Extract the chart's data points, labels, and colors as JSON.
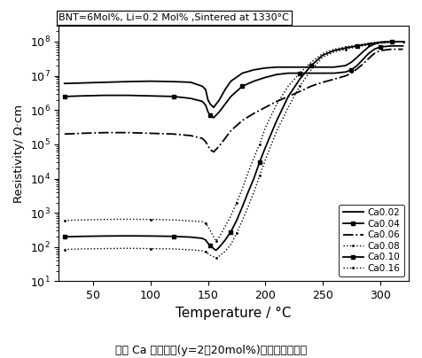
{
  "title": "BNT=6Mol%, Li=0.2 Mol% ,Sintered at 1330°C",
  "xlabel": "Temperature / °C",
  "ylabel": "Resistivity/ Ω·cm",
  "subtitle": "不同 Ca 含量材料(y=2～20mol%)的阻温特性图谱",
  "xlim": [
    20,
    325
  ],
  "ylim": [
    10,
    300000000.0
  ],
  "xticks": [
    50,
    100,
    150,
    200,
    250,
    300
  ],
  "series": [
    {
      "label": "Ca0.02",
      "linestyle": "-",
      "marker": "None",
      "markersize": 0,
      "color": "#000000",
      "lw": 1.3,
      "data_x": [
        25,
        40,
        60,
        80,
        100,
        120,
        135,
        145,
        148,
        150,
        152,
        155,
        160,
        165,
        170,
        180,
        190,
        200,
        210,
        220,
        230,
        240,
        250,
        260,
        270,
        275,
        280,
        285,
        290,
        295,
        300,
        310,
        320
      ],
      "data_y": [
        6000000.0,
        6200000.0,
        6500000.0,
        6800000.0,
        7000000.0,
        6800000.0,
        6500000.0,
        5000000.0,
        4000000.0,
        2000000.0,
        1500000.0,
        1200000.0,
        2000000.0,
        4000000.0,
        7000000.0,
        12000000.0,
        15000000.0,
        17000000.0,
        18000000.0,
        18000000.0,
        18000000.0,
        18000000.0,
        18000000.0,
        18000000.0,
        20000000.0,
        25000000.0,
        35000000.0,
        50000000.0,
        70000000.0,
        85000000.0,
        95000000.0,
        100000000.0,
        100000000.0
      ]
    },
    {
      "label": "Ca0.04",
      "linestyle": "-",
      "marker": "s",
      "markersize": 2.5,
      "color": "#000000",
      "lw": 1.3,
      "markevery": 5,
      "data_x": [
        25,
        40,
        60,
        80,
        100,
        120,
        135,
        145,
        148,
        150,
        152,
        155,
        160,
        165,
        170,
        180,
        190,
        200,
        210,
        220,
        230,
        240,
        250,
        260,
        270,
        275,
        280,
        285,
        290,
        295,
        300,
        310,
        320
      ],
      "data_y": [
        2500000.0,
        2600000.0,
        2700000.0,
        2700000.0,
        2600000.0,
        2500000.0,
        2200000.0,
        1800000.0,
        1400000.0,
        900000.0,
        700000.0,
        600000.0,
        900000.0,
        1500000.0,
        2500000.0,
        5000000.0,
        7000000.0,
        9000000.0,
        11000000.0,
        12000000.0,
        12000000.0,
        12000000.0,
        12000000.0,
        12000000.0,
        13000000.0,
        15000000.0,
        20000000.0,
        30000000.0,
        45000000.0,
        60000000.0,
        70000000.0,
        75000000.0,
        75000000.0
      ]
    },
    {
      "label": "Ca0.06",
      "linestyle": "-.",
      "marker": "None",
      "markersize": 0,
      "color": "#000000",
      "lw": 1.3,
      "markevery": 5,
      "data_x": [
        25,
        40,
        60,
        80,
        100,
        120,
        135,
        145,
        148,
        150,
        152,
        155,
        160,
        165,
        170,
        180,
        190,
        200,
        210,
        220,
        230,
        240,
        250,
        260,
        270,
        275,
        280,
        285,
        290,
        295,
        300,
        310,
        320
      ],
      "data_y": [
        200000.0,
        210000.0,
        220000.0,
        220000.0,
        210000.0,
        200000.0,
        180000.0,
        150000.0,
        120000.0,
        90000.0,
        70000.0,
        60000.0,
        90000.0,
        150000.0,
        250000.0,
        500000.0,
        800000.0,
        1200000.0,
        1800000.0,
        2500000.0,
        3500000.0,
        5000000.0,
        6500000.0,
        8000000.0,
        10000000.0,
        12000000.0,
        16000000.0,
        22000000.0,
        32000000.0,
        45000000.0,
        55000000.0,
        60000000.0,
        60000000.0
      ]
    },
    {
      "label": "Ca0.08",
      "linestyle": ":",
      "marker": ".",
      "markersize": 2,
      "color": "#000000",
      "lw": 1.0,
      "markevery": 4,
      "data_x": [
        25,
        40,
        60,
        80,
        100,
        120,
        135,
        145,
        148,
        150,
        152,
        155,
        157,
        160,
        165,
        170,
        175,
        180,
        185,
        190,
        195,
        200,
        210,
        220,
        230,
        240,
        250,
        260,
        270,
        275,
        280,
        285,
        290,
        295,
        300,
        310,
        320
      ],
      "data_y": [
        600,
        620,
        640,
        650,
        640,
        620,
        580,
        550,
        500,
        400,
        300,
        200,
        150,
        200,
        400,
        800,
        2000,
        5000,
        15000.0,
        40000.0,
        100000.0,
        300000.0,
        1500000.0,
        5000000.0,
        12000000.0,
        25000000.0,
        45000000.0,
        60000000.0,
        70000000.0,
        75000000.0,
        80000000.0,
        85000000.0,
        90000000.0,
        95000000.0,
        100000000.0,
        100000000.0,
        100000000.0
      ]
    },
    {
      "label": "Ca0.10",
      "linestyle": "-",
      "marker": "s",
      "markersize": 2.5,
      "color": "#000000",
      "lw": 1.3,
      "markevery": 5,
      "data_x": [
        25,
        40,
        60,
        80,
        100,
        120,
        135,
        145,
        148,
        150,
        152,
        155,
        157,
        160,
        165,
        170,
        175,
        180,
        185,
        190,
        195,
        200,
        210,
        220,
        230,
        240,
        250,
        260,
        270,
        275,
        280,
        285,
        290,
        295,
        300,
        310,
        320
      ],
      "data_y": [
        200,
        205,
        210,
        212,
        210,
        205,
        195,
        180,
        160,
        130,
        110,
        90,
        80,
        100,
        160,
        280,
        600,
        1500,
        4000,
        10000.0,
        30000.0,
        80000.0,
        500000.0,
        2500000.0,
        8000000.0,
        20000000.0,
        40000000.0,
        55000000.0,
        65000000.0,
        70000000.0,
        75000000.0,
        80000000.0,
        85000000.0,
        90000000.0,
        95000000.0,
        100000000.0,
        100000000.0
      ]
    },
    {
      "label": "Ca0.16",
      "linestyle": ":",
      "marker": ".",
      "markersize": 2,
      "color": "#000000",
      "lw": 1.0,
      "markevery": 4,
      "data_x": [
        25,
        40,
        60,
        80,
        100,
        120,
        135,
        145,
        148,
        150,
        152,
        155,
        157,
        160,
        165,
        170,
        175,
        180,
        185,
        190,
        195,
        200,
        210,
        220,
        230,
        240,
        250,
        260,
        270,
        275,
        280,
        285,
        290,
        295,
        300,
        310,
        320
      ],
      "data_y": [
        85,
        88,
        90,
        92,
        90,
        88,
        83,
        78,
        72,
        65,
        58,
        52,
        48,
        55,
        75,
        120,
        250,
        600,
        1500,
        4000,
        12000.0,
        35000.0,
        250000.0,
        1200000.0,
        5000000.0,
        15000000.0,
        35000000.0,
        50000000.0,
        60000000.0,
        65000000.0,
        70000000.0,
        75000000.0,
        80000000.0,
        85000000.0,
        90000000.0,
        95000000.0,
        100000000.0
      ]
    }
  ],
  "legend_fontsize": 7.5,
  "background_color": "#ffffff"
}
